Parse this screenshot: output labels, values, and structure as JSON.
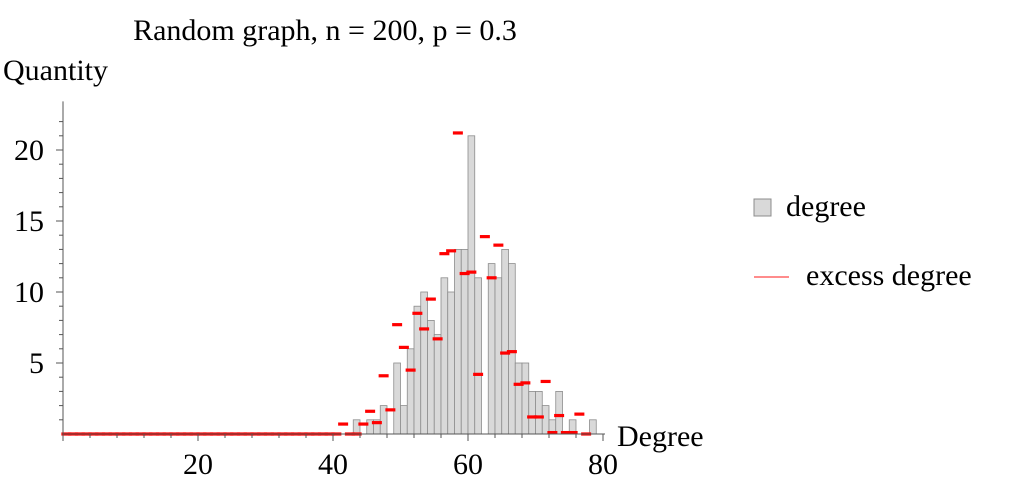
{
  "chart_data": {
    "type": "bar",
    "title": "Random graph, n = 200, p = 0.3",
    "xlabel": "Degree",
    "ylabel": "Quantity",
    "xlim": [
      0,
      80
    ],
    "ylim": [
      0,
      23
    ],
    "xticks": [
      20,
      40,
      60,
      80
    ],
    "yticks": [
      5,
      10,
      15,
      20
    ],
    "grid": false,
    "legend_position": "right",
    "legend": [
      {
        "label": "degree",
        "kind": "bar",
        "color": "#d9d9d9"
      },
      {
        "label": "excess degree",
        "kind": "line",
        "color": "#ff0000"
      }
    ],
    "degree": {
      "x": [
        41,
        42,
        43,
        44,
        45,
        46,
        47,
        48,
        49,
        50,
        51,
        52,
        53,
        54,
        55,
        56,
        57,
        58,
        59,
        60,
        61,
        62,
        63,
        64,
        65,
        66,
        67,
        68,
        69,
        70,
        71,
        72,
        73,
        74,
        75,
        76,
        77,
        78
      ],
      "values": [
        0,
        0,
        1,
        0,
        1,
        1,
        2,
        0,
        5,
        2,
        6,
        9,
        10,
        8,
        7,
        11,
        10,
        13,
        13,
        21,
        11,
        0,
        12,
        11,
        13,
        12,
        5,
        5,
        3,
        3,
        2,
        1,
        3,
        0,
        1,
        0,
        0,
        1
      ]
    },
    "excess_degree": {
      "x": [
        0,
        1,
        2,
        3,
        4,
        5,
        6,
        7,
        8,
        9,
        10,
        11,
        12,
        13,
        14,
        15,
        16,
        17,
        18,
        19,
        20,
        21,
        22,
        23,
        24,
        25,
        26,
        27,
        28,
        29,
        30,
        31,
        32,
        33,
        34,
        35,
        36,
        37,
        38,
        39,
        40,
        41,
        42,
        43,
        44,
        45,
        46,
        47,
        48,
        49,
        50,
        51,
        52,
        53,
        54,
        55,
        56,
        57,
        58,
        59,
        60,
        61,
        62,
        63,
        64,
        65,
        66,
        67,
        68,
        69,
        70,
        71,
        72,
        73,
        74,
        75,
        76,
        77
      ],
      "values": [
        0,
        0,
        0,
        0,
        0,
        0,
        0,
        0,
        0,
        0,
        0,
        0,
        0,
        0,
        0,
        0,
        0,
        0,
        0,
        0,
        0,
        0,
        0,
        0,
        0,
        0,
        0,
        0,
        0,
        0,
        0,
        0,
        0,
        0,
        0,
        0,
        0,
        0,
        0,
        0,
        0,
        0.7,
        0,
        0,
        0.7,
        1.6,
        0.8,
        4.1,
        1.7,
        7.7,
        6.1,
        4.5,
        8.5,
        7.4,
        9.5,
        6.7,
        12.7,
        12.9,
        21.2,
        11.3,
        11.4,
        4.2,
        13.9,
        11.0,
        13.3,
        5.7,
        5.8,
        3.5,
        3.6,
        1.2,
        1.2,
        3.7,
        0.1,
        1.3,
        0.1,
        0.1,
        1.4,
        0
      ]
    }
  }
}
